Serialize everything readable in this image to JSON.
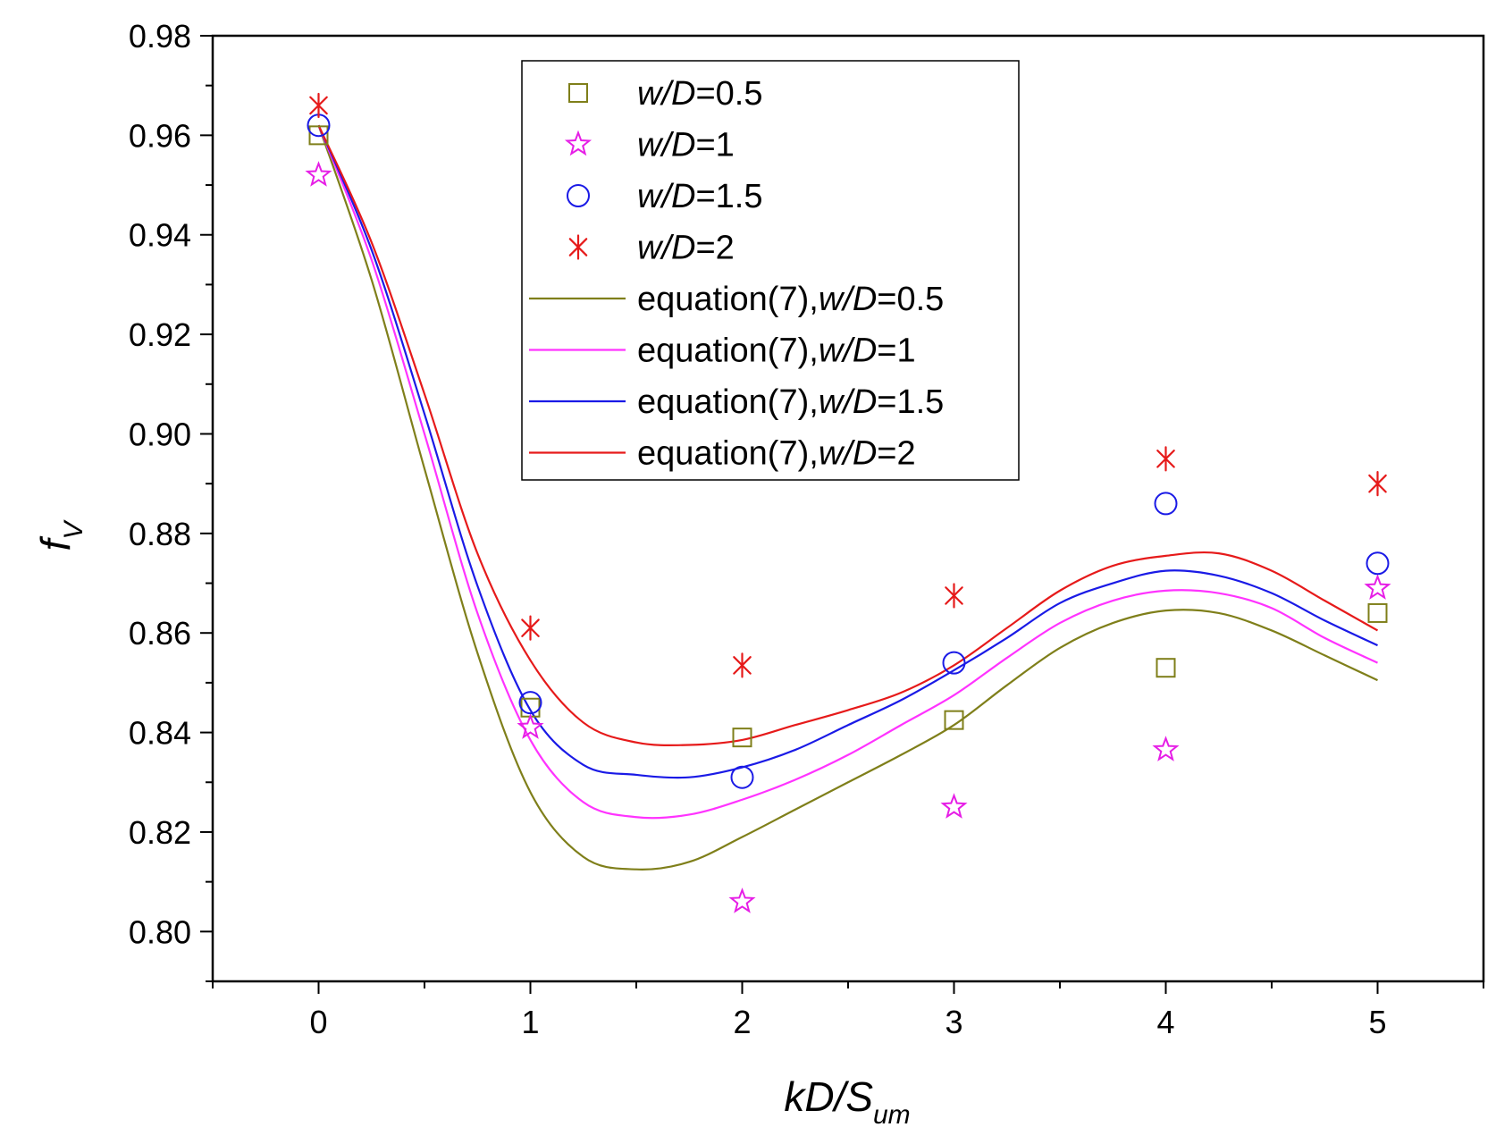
{
  "chart_data": {
    "type": "scatter",
    "title": "",
    "xlabel": {
      "main": "kD/S",
      "sub": "um"
    },
    "ylabel": {
      "main": "f",
      "sub": "V"
    },
    "xlim": [
      -0.5,
      5.5
    ],
    "ylim": [
      0.79,
      0.98
    ],
    "xticks": [
      0,
      1,
      2,
      3,
      4,
      5
    ],
    "xtick_labels": [
      "0",
      "1",
      "2",
      "3",
      "4",
      "5"
    ],
    "yticks": [
      0.8,
      0.82,
      0.84,
      0.86,
      0.88,
      0.9,
      0.92,
      0.94,
      0.96,
      0.98
    ],
    "ytick_labels": [
      "0.80",
      "0.82",
      "0.84",
      "0.86",
      "0.88",
      "0.90",
      "0.92",
      "0.94",
      "0.96",
      "0.98"
    ],
    "grid": false,
    "legend_position": "top-center",
    "series": [
      {
        "name": "w/D=0.5",
        "label_italic": "w/D",
        "label_rest": "=0.5",
        "marker": "square",
        "color": "#7f7f1a",
        "x": [
          0,
          1,
          2,
          3,
          4,
          5
        ],
        "y": [
          0.96,
          0.845,
          0.839,
          0.8425,
          0.853,
          0.864
        ]
      },
      {
        "name": "w/D=1",
        "label_italic": "w/D",
        "label_rest": "=1",
        "marker": "star",
        "color": "#e61ee6",
        "x": [
          0,
          1,
          2,
          3,
          4,
          5
        ],
        "y": [
          0.952,
          0.841,
          0.806,
          0.825,
          0.8365,
          0.869
        ]
      },
      {
        "name": "w/D=1.5",
        "label_italic": "w/D",
        "label_rest": "=1.5",
        "marker": "circle",
        "color": "#1a1ae6",
        "x": [
          0,
          1,
          2,
          3,
          4,
          5
        ],
        "y": [
          0.962,
          0.846,
          0.831,
          0.854,
          0.886,
          0.874
        ]
      },
      {
        "name": "w/D=2",
        "label_italic": "w/D",
        "label_rest": "=2",
        "marker": "asterisk",
        "color": "#e61a1a",
        "x": [
          0,
          1,
          2,
          3,
          4,
          5
        ],
        "y": [
          0.966,
          0.861,
          0.8535,
          0.8675,
          0.895,
          0.89
        ]
      }
    ],
    "fit_lines": [
      {
        "name": "equation(7),w/D=0.5",
        "label_prefix": "equation(7),",
        "label_italic": "w/D",
        "label_rest": "=0.5",
        "color": "#7f7f1a",
        "x": [
          0,
          0.25,
          0.5,
          0.75,
          1.0,
          1.25,
          1.5,
          1.75,
          2.0,
          2.25,
          2.5,
          2.75,
          3.0,
          3.25,
          3.5,
          3.75,
          4.0,
          4.25,
          4.5,
          4.75,
          5.0
        ],
        "y": [
          0.962,
          0.931,
          0.893,
          0.856,
          0.828,
          0.815,
          0.8125,
          0.814,
          0.819,
          0.8245,
          0.83,
          0.8355,
          0.8415,
          0.8495,
          0.857,
          0.862,
          0.8645,
          0.864,
          0.8605,
          0.8555,
          0.8505
        ]
      },
      {
        "name": "equation(7),w/D=1",
        "label_prefix": "equation(7),",
        "label_italic": "w/D",
        "label_rest": "=1",
        "color": "#ff33ff",
        "x": [
          0,
          0.25,
          0.5,
          0.75,
          1.0,
          1.25,
          1.5,
          1.75,
          2.0,
          2.25,
          2.5,
          2.75,
          3.0,
          3.25,
          3.5,
          3.75,
          4.0,
          4.25,
          4.5,
          4.75,
          5.0
        ],
        "y": [
          0.962,
          0.935,
          0.9,
          0.864,
          0.8385,
          0.826,
          0.823,
          0.8235,
          0.8265,
          0.8305,
          0.8355,
          0.8415,
          0.8475,
          0.855,
          0.862,
          0.8665,
          0.8685,
          0.868,
          0.865,
          0.859,
          0.854
        ]
      },
      {
        "name": "equation(7),w/D=1.5",
        "label_prefix": "equation(7),",
        "label_italic": "w/D",
        "label_rest": "=1.5",
        "color": "#1a1ae6",
        "x": [
          0,
          0.25,
          0.5,
          0.75,
          1.0,
          1.25,
          1.5,
          1.75,
          2.0,
          2.25,
          2.5,
          2.75,
          3.0,
          3.25,
          3.5,
          3.75,
          4.0,
          4.25,
          4.5,
          4.75,
          5.0
        ],
        "y": [
          0.962,
          0.937,
          0.904,
          0.8695,
          0.8445,
          0.8335,
          0.8315,
          0.831,
          0.833,
          0.8365,
          0.8415,
          0.8465,
          0.8525,
          0.859,
          0.866,
          0.87,
          0.8725,
          0.8715,
          0.868,
          0.8625,
          0.8575
        ]
      },
      {
        "name": "equation(7),w/D=2",
        "label_prefix": "equation(7),",
        "label_italic": "w/D",
        "label_rest": "=2",
        "color": "#e61a1a",
        "x": [
          0,
          0.25,
          0.5,
          0.75,
          1.0,
          1.25,
          1.5,
          1.75,
          2.0,
          2.25,
          2.5,
          2.75,
          3.0,
          3.25,
          3.5,
          3.75,
          4.0,
          4.25,
          4.5,
          4.75,
          5.0
        ],
        "y": [
          0.962,
          0.9385,
          0.908,
          0.876,
          0.8545,
          0.842,
          0.838,
          0.8375,
          0.8385,
          0.8415,
          0.8445,
          0.848,
          0.8535,
          0.861,
          0.8685,
          0.8735,
          0.8755,
          0.876,
          0.8725,
          0.8665,
          0.8605
        ]
      }
    ]
  }
}
